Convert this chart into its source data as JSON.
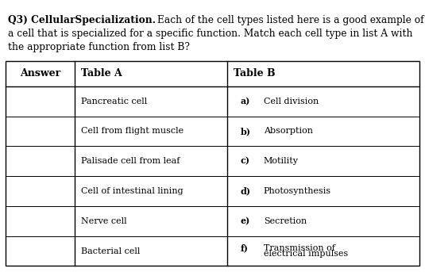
{
  "title_bold": "Q3) CellularSpecialization.",
  "title_line1_normal": "Each of the cell types listed here is a good example of",
  "title_line2": "a cell that is specialized for a specific function. Match each cell type in list A with",
  "title_line3": "the appropriate function from list B?",
  "col_headers": [
    "Answer",
    "Table A",
    "Table B"
  ],
  "table_a": [
    "Pancreatic cell",
    "Cell from flight muscle",
    "Palisade cell from leaf",
    "Cell of intestinal lining",
    "Nerve cell",
    "Bacterial cell"
  ],
  "table_b_labels": [
    "a)",
    "b)",
    "c)",
    "d)",
    "e)",
    "f)"
  ],
  "table_b_texts": [
    "  Cell division",
    "  Absorption",
    "  Motility",
    "  Photosynthesis",
    "  Secretion",
    "  Transmission of\nelectrical impulses"
  ],
  "bg_color": "#ffffff",
  "text_color": "#000000",
  "font_size": 8.0,
  "header_font_size": 9.0,
  "title_font_size": 8.8,
  "figsize": [
    5.35,
    3.43
  ],
  "dpi": 100
}
